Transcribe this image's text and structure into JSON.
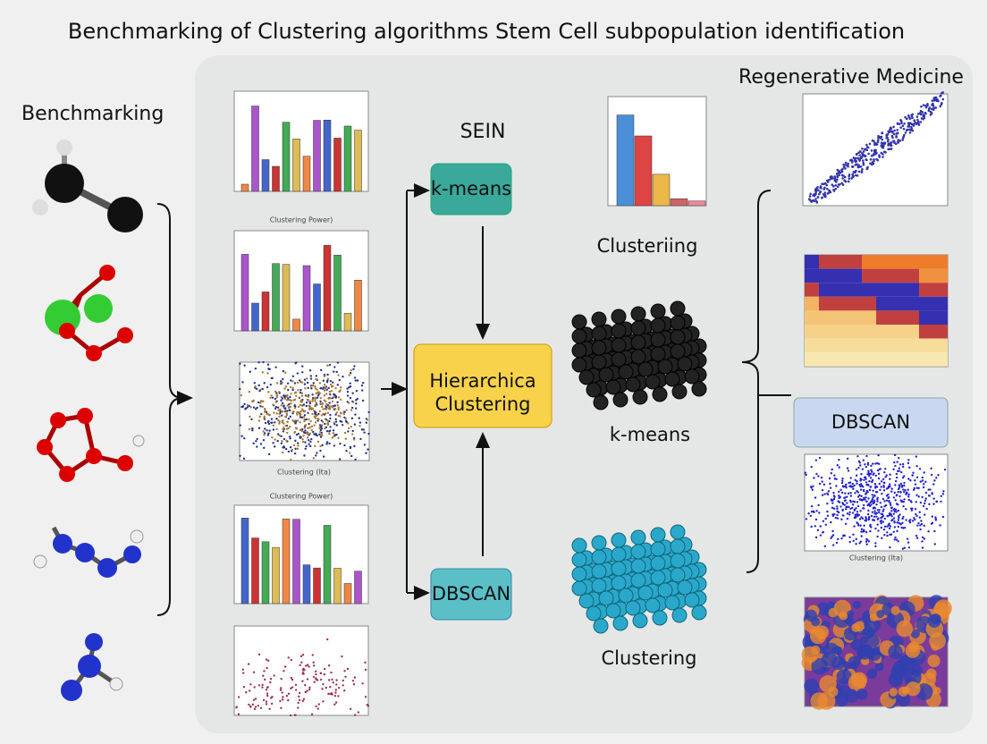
{
  "header": {
    "title": "Benchmarking of Clustering algorithms Stem Cell subpopulation identification"
  },
  "left": {
    "label": "Benchmarking"
  },
  "middle": {
    "label": "SEIN",
    "boxes": [
      "k-means",
      "Hierarchica Clustering",
      "DBSCAN"
    ],
    "chart_titles": [
      "Clustering Power)",
      "Clustering Power)"
    ],
    "axis_label": "Clustering (Ita)"
  },
  "results": {
    "captions": [
      "Clusteriing",
      "k-means",
      "Clustering"
    ]
  },
  "right": {
    "label": "Regenerative Medicine",
    "box": "DBSCAN",
    "axis_label": "Clustering (Ita)"
  }
}
